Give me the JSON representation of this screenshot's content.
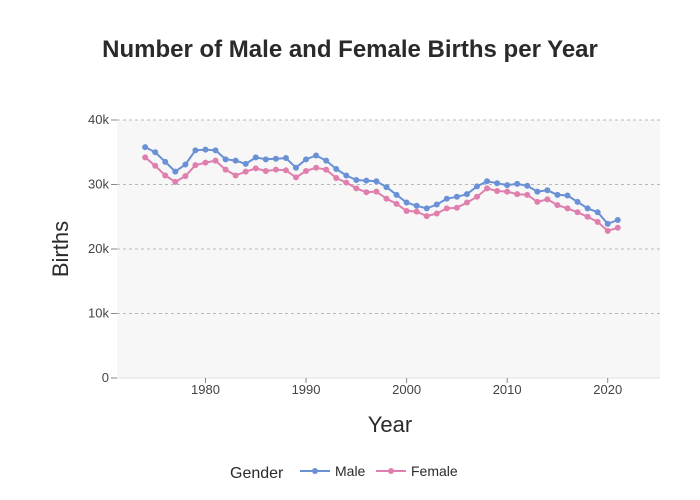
{
  "chart_data": {
    "type": "line",
    "title": "Number of Male and Female Births per Year",
    "xlabel": "Year",
    "ylabel": "Births",
    "xlim": [
      1971.2,
      2025.2
    ],
    "ylim": [
      0,
      40000
    ],
    "x_ticks": [
      1980,
      1990,
      2000,
      2010,
      2020
    ],
    "y_ticks": [
      0,
      10000,
      20000,
      30000,
      40000
    ],
    "y_tick_labels": [
      "0",
      "10k",
      "20k",
      "30k",
      "40k"
    ],
    "grid": "horizontal dashed",
    "legend_title": "Gender",
    "legend_position": "bottom",
    "x": [
      1974,
      1975,
      1976,
      1977,
      1978,
      1979,
      1980,
      1981,
      1982,
      1983,
      1984,
      1985,
      1986,
      1987,
      1988,
      1989,
      1990,
      1991,
      1992,
      1993,
      1994,
      1995,
      1996,
      1997,
      1998,
      1999,
      2000,
      2001,
      2002,
      2003,
      2004,
      2005,
      2006,
      2007,
      2008,
      2009,
      2010,
      2011,
      2012,
      2013,
      2014,
      2015,
      2016,
      2017,
      2018,
      2019,
      2020,
      2021
    ],
    "series": [
      {
        "name": "Male",
        "color": "#6a90d6",
        "values": [
          35800,
          35000,
          33500,
          32000,
          33100,
          35300,
          35400,
          35300,
          33900,
          33700,
          33200,
          34200,
          33900,
          34000,
          34100,
          32600,
          33900,
          34500,
          33700,
          32400,
          31400,
          30700,
          30600,
          30500,
          29600,
          28400,
          27200,
          26700,
          26300,
          26900,
          27800,
          28100,
          28500,
          29700,
          30500,
          30200,
          29900,
          30100,
          29800,
          28900,
          29100,
          28400,
          28300,
          27300,
          26300,
          25700,
          23900,
          24500
        ]
      },
      {
        "name": "Female",
        "color": "#e07fae",
        "values": [
          34200,
          32900,
          31400,
          30400,
          31300,
          33000,
          33400,
          33700,
          32300,
          31400,
          32000,
          32500,
          32100,
          32300,
          32200,
          31100,
          32100,
          32600,
          32300,
          31000,
          30300,
          29400,
          28800,
          28900,
          27800,
          27000,
          25900,
          25800,
          25100,
          25500,
          26300,
          26400,
          27200,
          28100,
          29400,
          29000,
          28900,
          28500,
          28400,
          27300,
          27700,
          26800,
          26300,
          25700,
          25000,
          24200,
          22800,
          23300
        ]
      }
    ]
  }
}
